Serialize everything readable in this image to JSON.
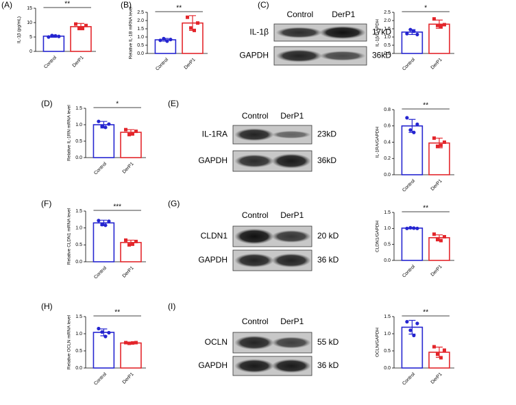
{
  "panels": [
    "(A)",
    "(B)",
    "(C)",
    "(D)",
    "(E)",
    "(F)",
    "(G)",
    "(H)",
    "(I)"
  ],
  "blots": [
    {
      "columns": [
        "Control",
        "DerP1"
      ],
      "rows": [
        "IL-1β",
        "GAPDH"
      ],
      "sizes": [
        "17kD",
        "36kD"
      ]
    },
    {
      "columns": [
        "Control",
        "DerP1"
      ],
      "rows": [
        "IL-1RA",
        "GAPDH"
      ],
      "sizes": [
        "23kD",
        "36kD"
      ]
    },
    {
      "columns": [
        "Control",
        "DerP1"
      ],
      "rows": [
        "CLDN1",
        "GAPDH"
      ],
      "sizes": [
        "20 kD",
        "36 kD"
      ]
    },
    {
      "columns": [
        "Control",
        "DerP1"
      ],
      "rows": [
        "OCLN",
        "GAPDH"
      ],
      "sizes": [
        "55 kD",
        "36 kD"
      ]
    }
  ],
  "chart_data": [
    {
      "type": "bar",
      "ylabel": "IL-1β (pg/mL)",
      "categories": [
        "Control",
        "DerP1"
      ],
      "colors": [
        "#2525d0",
        "#e3262b"
      ],
      "values": [
        5.3,
        8.6
      ],
      "errors": [
        0.4,
        1.1
      ],
      "points": [
        [
          5.0,
          5.5,
          5.4,
          5.2
        ],
        [
          9.5,
          8.0,
          8.2,
          9.0
        ]
      ],
      "ylim": [
        0,
        15
      ],
      "yticks": [
        0,
        5,
        10,
        15
      ],
      "significance": "**"
    },
    {
      "type": "bar",
      "ylabel": "Relative IL-1B mRNA level",
      "categories": [
        "Control",
        "DerP1"
      ],
      "colors": [
        "#2525d0",
        "#e3262b"
      ],
      "values": [
        0.83,
        1.85
      ],
      "errors": [
        0.08,
        0.45
      ],
      "points": [
        [
          0.8,
          0.9,
          0.75,
          0.85
        ],
        [
          2.2,
          1.55,
          1.4,
          1.85
        ]
      ],
      "ylim": [
        0,
        2.5
      ],
      "yticks": [
        {
          "value": 0,
          "label": "0.0"
        },
        0.5,
        {
          "value": 1,
          "label": "1.0"
        },
        1.5,
        {
          "value": 2,
          "label": "2.0"
        },
        2.5
      ],
      "significance": "**"
    },
    {
      "type": "bar",
      "ylabel": "IL-1β/GAPDH",
      "categories": [
        "Control",
        "DerP1"
      ],
      "colors": [
        "#2525d0",
        "#e3262b"
      ],
      "values": [
        1.3,
        1.78
      ],
      "errors": [
        0.15,
        0.25
      ],
      "points": [
        [
          1.2,
          1.45,
          1.35,
          1.15
        ],
        [
          2.1,
          1.7,
          1.65,
          1.75
        ]
      ],
      "ylim": [
        0,
        2.5
      ],
      "yticks": [
        {
          "value": 0,
          "label": "0.0"
        },
        0.5,
        {
          "value": 1,
          "label": "1.0"
        },
        1.5,
        {
          "value": 2,
          "label": "2.0"
        },
        2.5
      ],
      "significance": "*"
    },
    {
      "type": "bar",
      "ylabel": "Relative IL-1RN mRNA level",
      "categories": [
        "Control",
        "DerP1"
      ],
      "colors": [
        "#2525d0",
        "#e3262b"
      ],
      "values": [
        1.0,
        0.77
      ],
      "errors": [
        0.1,
        0.08
      ],
      "points": [
        [
          1.1,
          0.95,
          0.92,
          1.02
        ],
        [
          0.85,
          0.7,
          0.72,
          0.8
        ]
      ],
      "ylim": [
        0,
        1.5
      ],
      "yticks": [
        {
          "value": 0,
          "label": "0.0"
        },
        0.5,
        {
          "value": 1,
          "label": "1.0"
        },
        1.5
      ],
      "significance": "*"
    },
    {
      "type": "bar",
      "ylabel": "IL-1RA/GAPDH",
      "categories": [
        "Control",
        "DerP1"
      ],
      "colors": [
        "#2525d0",
        "#e3262b"
      ],
      "values": [
        0.6,
        0.39
      ],
      "errors": [
        0.08,
        0.06
      ],
      "points": [
        [
          0.7,
          0.55,
          0.52,
          0.62
        ],
        [
          0.45,
          0.35,
          0.36,
          0.4
        ]
      ],
      "ylim": [
        0,
        0.8
      ],
      "yticks": [
        {
          "value": 0,
          "label": "0.0"
        },
        0.2,
        0.4,
        0.6,
        0.8
      ],
      "significance": "**"
    },
    {
      "type": "bar",
      "ylabel": "Relative CLDN1 mRNA level",
      "categories": [
        "Control",
        "DerP1"
      ],
      "colors": [
        "#2525d0",
        "#e3262b"
      ],
      "values": [
        1.15,
        0.57
      ],
      "errors": [
        0.08,
        0.07
      ],
      "points": [
        [
          1.22,
          1.1,
          1.08,
          1.2
        ],
        [
          0.64,
          0.5,
          0.52,
          0.6
        ]
      ],
      "ylim": [
        0,
        1.5
      ],
      "yticks": [
        {
          "value": 0,
          "label": "0.0"
        },
        0.5,
        {
          "value": 1,
          "label": "1.0"
        },
        1.5
      ],
      "significance": "***"
    },
    {
      "type": "bar",
      "ylabel": "CLDN1/GAPDH",
      "categories": [
        "Control",
        "DerP1"
      ],
      "colors": [
        "#2525d0",
        "#e3262b"
      ],
      "values": [
        1.01,
        0.71
      ],
      "errors": [
        0.02,
        0.09
      ],
      "points": [
        [
          1.0,
          1.02,
          1.01,
          1.0
        ],
        [
          0.82,
          0.65,
          0.62,
          0.74
        ]
      ],
      "ylim": [
        0,
        1.5
      ],
      "yticks": [
        {
          "value": 0,
          "label": "0.0"
        },
        0.5,
        {
          "value": 1,
          "label": "1.0"
        },
        1.5
      ],
      "significance": "**"
    },
    {
      "type": "bar",
      "ylabel": "Relative OCLN mRNA level",
      "categories": [
        "Control",
        "DerP1"
      ],
      "colors": [
        "#2525d0",
        "#e3262b"
      ],
      "values": [
        1.04,
        0.73
      ],
      "errors": [
        0.1,
        0.02
      ],
      "points": [
        [
          1.15,
          1.05,
          0.92,
          1.03
        ],
        [
          0.74,
          0.72,
          0.73,
          0.74
        ]
      ],
      "ylim": [
        0,
        1.5
      ],
      "yticks": [
        {
          "value": 0,
          "label": "0.0"
        },
        0.5,
        {
          "value": 1,
          "label": "1.0"
        },
        1.5
      ],
      "significance": "**"
    },
    {
      "type": "bar",
      "ylabel": "OCLN/GAPDH",
      "categories": [
        "Control",
        "DerP1"
      ],
      "colors": [
        "#2525d0",
        "#e3262b"
      ],
      "values": [
        1.19,
        0.46
      ],
      "errors": [
        0.2,
        0.15
      ],
      "points": [
        [
          1.35,
          1.1,
          0.95,
          1.3
        ],
        [
          0.62,
          0.4,
          0.3,
          0.52
        ]
      ],
      "ylim": [
        0,
        1.5
      ],
      "yticks": [
        {
          "value": 0,
          "label": "0.0"
        },
        0.5,
        {
          "value": 1,
          "label": "1.0"
        },
        1.5
      ],
      "significance": "**"
    }
  ]
}
